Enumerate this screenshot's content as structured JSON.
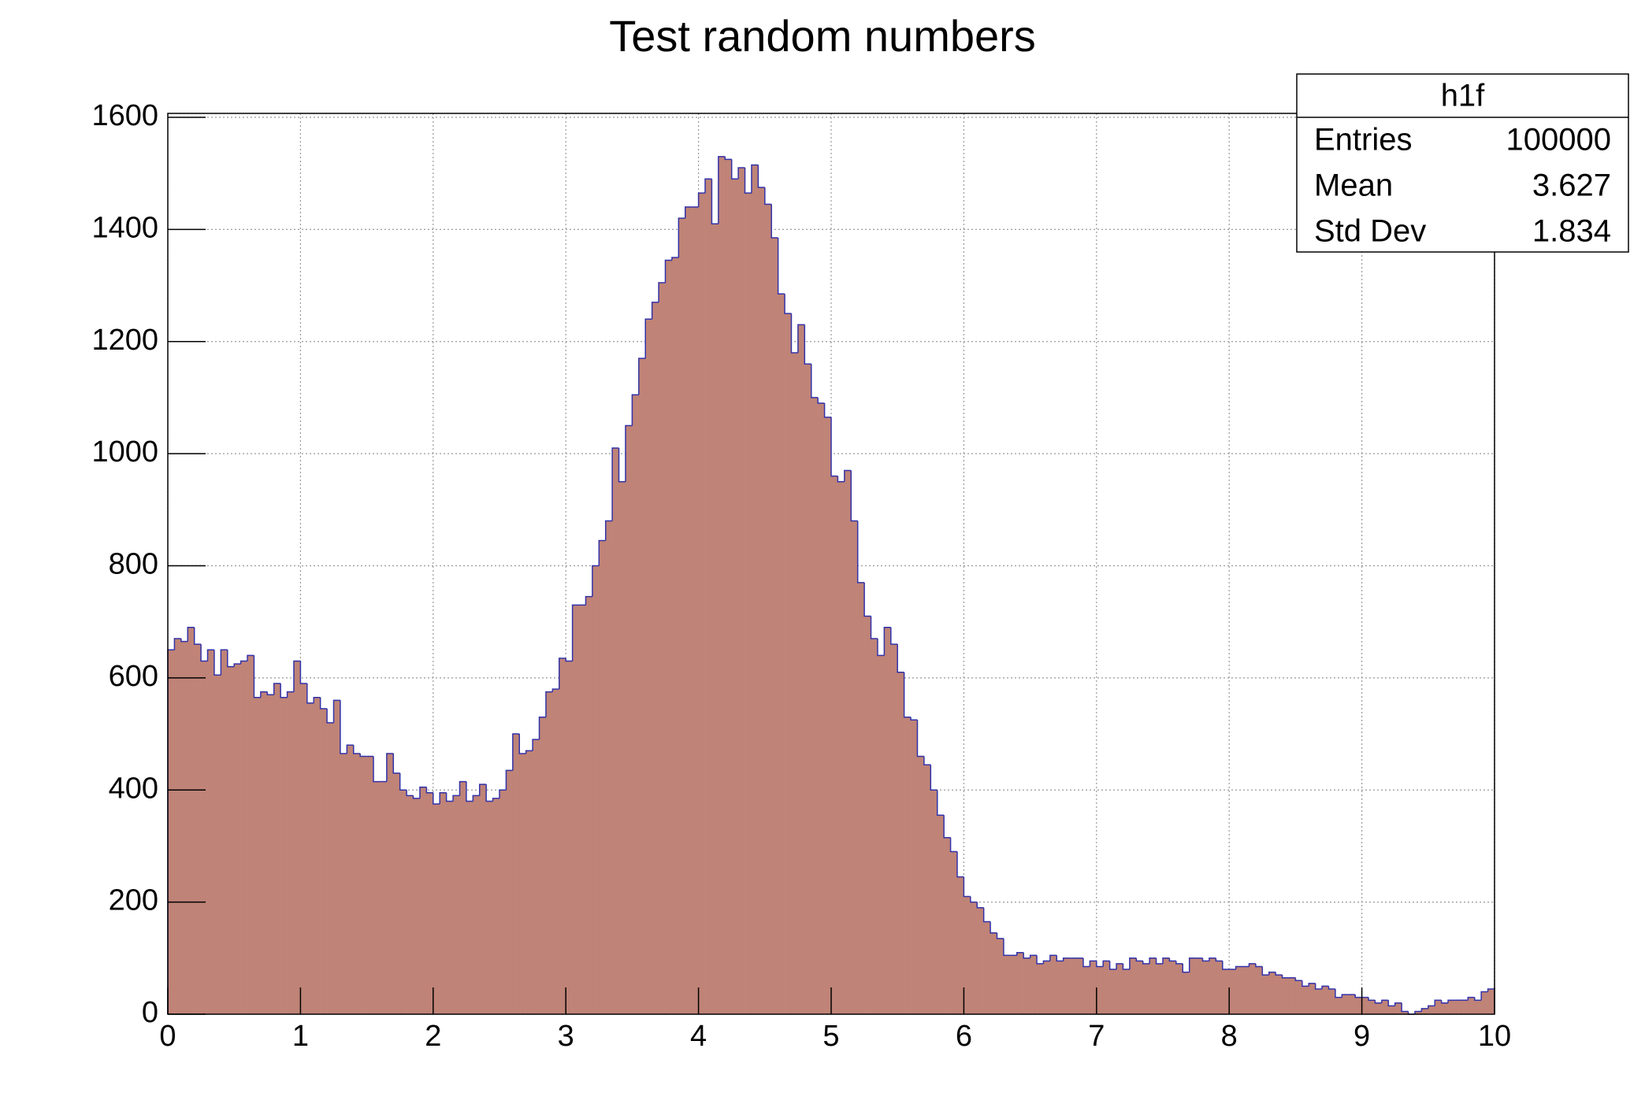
{
  "chart_data": {
    "type": "histogram",
    "title": "Test random numbers",
    "bins": [
      0,
      0.05,
      0.1,
      0.15,
      0.2,
      0.25,
      0.3,
      0.35,
      0.4,
      0.45,
      0.5,
      0.55,
      0.6,
      0.65,
      0.7,
      0.75,
      0.8,
      0.85,
      0.9,
      0.95,
      1,
      1.05,
      1.1,
      1.15,
      1.2,
      1.25,
      1.3,
      1.35,
      1.4,
      1.45,
      1.5,
      1.55,
      1.6,
      1.65,
      1.7,
      1.75,
      1.8,
      1.85,
      1.9,
      1.95,
      2,
      2.05,
      2.1,
      2.15,
      2.2,
      2.25,
      2.3,
      2.35,
      2.4,
      2.45,
      2.5,
      2.55,
      2.6,
      2.65,
      2.7,
      2.75,
      2.8,
      2.85,
      2.9,
      2.95,
      3,
      3.05,
      3.1,
      3.15,
      3.2,
      3.25,
      3.3,
      3.35,
      3.4,
      3.45,
      3.5,
      3.55,
      3.6,
      3.65,
      3.7,
      3.75,
      3.8,
      3.85,
      3.9,
      3.95,
      4,
      4.05,
      4.1,
      4.15,
      4.2,
      4.25,
      4.3,
      4.35,
      4.4,
      4.45,
      4.5,
      4.55,
      4.6,
      4.65,
      4.7,
      4.75,
      4.8,
      4.85,
      4.9,
      4.95,
      5,
      5.05,
      5.1,
      5.15,
      5.2,
      5.25,
      5.3,
      5.35,
      5.4,
      5.45,
      5.5,
      5.55,
      5.6,
      5.65,
      5.7,
      5.75,
      5.8,
      5.85,
      5.9,
      5.95,
      6,
      6.05,
      6.1,
      6.15,
      6.2,
      6.25,
      6.3,
      6.35,
      6.4,
      6.45,
      6.5,
      6.55,
      6.6,
      6.65,
      6.7,
      6.75,
      6.8,
      6.85,
      6.9,
      6.95,
      7,
      7.05,
      7.1,
      7.15,
      7.2,
      7.25,
      7.3,
      7.35,
      7.4,
      7.45,
      7.5,
      7.55,
      7.6,
      7.65,
      7.7,
      7.75,
      7.8,
      7.85,
      7.9,
      7.95,
      8,
      8.05,
      8.1,
      8.15,
      8.2,
      8.25,
      8.3,
      8.35,
      8.4,
      8.45,
      8.5,
      8.55,
      8.6,
      8.65,
      8.7,
      8.75,
      8.8,
      8.85,
      8.9,
      8.95,
      9,
      9.05,
      9.1,
      9.15,
      9.2,
      9.25,
      9.3,
      9.35,
      9.4,
      9.45,
      9.5,
      9.55,
      9.6,
      9.65,
      9.7,
      9.75,
      9.8,
      9.85,
      9.9,
      9.95,
      10
    ],
    "values": [
      650,
      670,
      665,
      690,
      660,
      630,
      650,
      605,
      650,
      620,
      625,
      630,
      640,
      565,
      575,
      570,
      590,
      565,
      575,
      630,
      590,
      555,
      565,
      545,
      520,
      560,
      465,
      480,
      465,
      460,
      460,
      415,
      415,
      465,
      430,
      400,
      390,
      385,
      405,
      395,
      375,
      395,
      380,
      390,
      415,
      380,
      390,
      410,
      380,
      385,
      400,
      435,
      500,
      465,
      470,
      490,
      530,
      575,
      580,
      635,
      630,
      730,
      730,
      745,
      800,
      845,
      880,
      1010,
      950,
      1050,
      1105,
      1170,
      1240,
      1270,
      1305,
      1345,
      1350,
      1420,
      1440,
      1440,
      1465,
      1490,
      1410,
      1530,
      1525,
      1490,
      1510,
      1465,
      1515,
      1475,
      1445,
      1385,
      1285,
      1250,
      1180,
      1230,
      1160,
      1100,
      1090,
      1065,
      960,
      950,
      970,
      880,
      770,
      710,
      670,
      640,
      690,
      660,
      610,
      530,
      525,
      460,
      445,
      400,
      355,
      315,
      290,
      245,
      210,
      200,
      190,
      165,
      145,
      135,
      105,
      105,
      110,
      100,
      105,
      90,
      95,
      105,
      95,
      100,
      100,
      100,
      85,
      95,
      85,
      95,
      80,
      90,
      80,
      100,
      95,
      90,
      100,
      90,
      100,
      95,
      90,
      75,
      100,
      100,
      95,
      100,
      95,
      80,
      80,
      85,
      85,
      90,
      85,
      70,
      75,
      70,
      65,
      65,
      60,
      50,
      55,
      45,
      50,
      45,
      30,
      35,
      35,
      30,
      30,
      25,
      20,
      25,
      15,
      20,
      5,
      0,
      5,
      10,
      15,
      25,
      20,
      25,
      25,
      25,
      30,
      25,
      40,
      45
    ],
    "color": "#bf8377",
    "line_color": "#3232a8",
    "xlim": [
      0,
      10
    ],
    "ylim": [
      0,
      1607
    ],
    "xticks": [
      0,
      1,
      2,
      3,
      4,
      5,
      6,
      7,
      8,
      9,
      10
    ],
    "yticks": [
      0,
      200,
      400,
      600,
      800,
      1000,
      1200,
      1400,
      1600
    ],
    "grid": true,
    "stats_box": {
      "title": "h1f",
      "rows": [
        [
          "Entries",
          100000
        ],
        [
          "Mean",
          3.627
        ],
        [
          "Std Dev",
          1.834
        ]
      ]
    }
  }
}
